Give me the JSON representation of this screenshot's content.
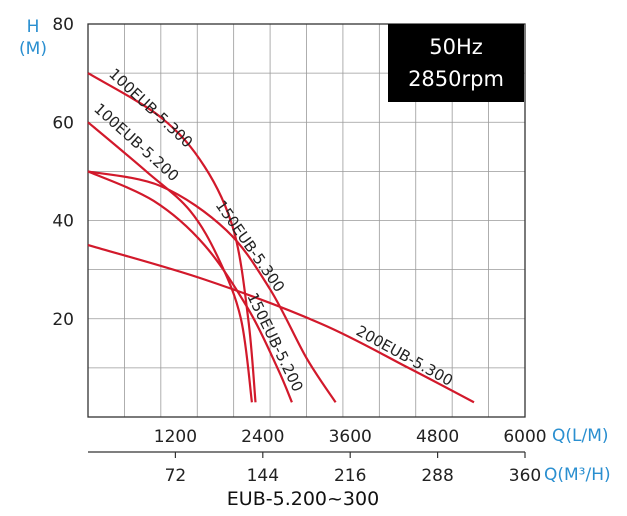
{
  "chart_data": {
    "type": "line",
    "title": "EUB-5.200~300",
    "y_axis": {
      "label_top": "H",
      "label_unit": "(M)",
      "range": [
        0,
        80
      ],
      "ticks": [
        "80",
        "60",
        "40",
        "20"
      ]
    },
    "x_axis": {
      "unit": "Q(L/M)",
      "range": [
        0,
        6000
      ],
      "ticks": [
        "1200",
        "2400",
        "3600",
        "4800",
        "6000"
      ]
    },
    "x2_axis": {
      "unit": "Q(M³/H)",
      "range": [
        0,
        360
      ],
      "ticks": [
        "72",
        "144",
        "216",
        "288",
        "360"
      ]
    },
    "info_box": {
      "line1": "50Hz",
      "line2": "2850rpm"
    },
    "grid": true,
    "curve_color": "#d2192b",
    "series": [
      {
        "name": "100EUB-5.300",
        "points": [
          [
            0,
            70
          ],
          [
            1000,
            61
          ],
          [
            1600,
            51
          ],
          [
            2000,
            38
          ],
          [
            2200,
            20
          ],
          [
            2300,
            3
          ]
        ]
      },
      {
        "name": "100EUB-5.200",
        "points": [
          [
            0,
            60
          ],
          [
            800,
            50
          ],
          [
            1400,
            42
          ],
          [
            1800,
            32
          ],
          [
            2100,
            20
          ],
          [
            2250,
            3
          ]
        ]
      },
      {
        "name": "150EUB-5.300",
        "points": [
          [
            0,
            50
          ],
          [
            1000,
            47
          ],
          [
            1900,
            38
          ],
          [
            2500,
            26
          ],
          [
            3000,
            12
          ],
          [
            3400,
            3
          ]
        ]
      },
      {
        "name": "150EUB-5.200",
        "points": [
          [
            0,
            50
          ],
          [
            900,
            44
          ],
          [
            1600,
            35
          ],
          [
            2200,
            22
          ],
          [
            2600,
            10
          ],
          [
            2800,
            3
          ]
        ]
      },
      {
        "name": "200EUB-5.300",
        "points": [
          [
            0,
            35
          ],
          [
            1600,
            28
          ],
          [
            3200,
            19
          ],
          [
            4400,
            10
          ],
          [
            5300,
            3
          ]
        ]
      }
    ]
  }
}
